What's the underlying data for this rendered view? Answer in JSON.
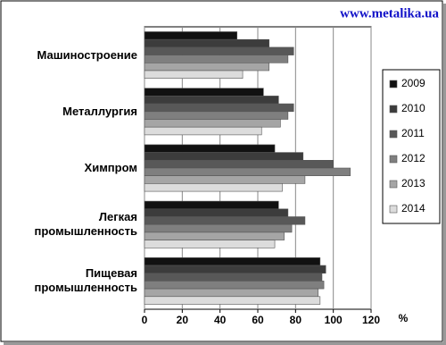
{
  "chart_data": {
    "type": "bar",
    "orientation": "horizontal",
    "watermark": "www.metalika.ua",
    "x_unit": "%",
    "categories": [
      "Машиностроение",
      "Металлургия",
      "Химпром",
      "Легкая промышленность",
      "Пищевая промышленность"
    ],
    "series": [
      {
        "name": "2009",
        "color": "#111111",
        "values": [
          49,
          63,
          69,
          71,
          93
        ]
      },
      {
        "name": "2010",
        "color": "#3c3c3c",
        "values": [
          66,
          71,
          84,
          76,
          96
        ]
      },
      {
        "name": "2011",
        "color": "#585858",
        "values": [
          79,
          79,
          100,
          85,
          94
        ]
      },
      {
        "name": "2012",
        "color": "#7f7f7f",
        "values": [
          76,
          76,
          109,
          78,
          95
        ]
      },
      {
        "name": "2013",
        "color": "#a5a5a5",
        "values": [
          66,
          72,
          85,
          74,
          92
        ]
      },
      {
        "name": "2014",
        "color": "#dcdcdc",
        "values": [
          52,
          62,
          73,
          69,
          93
        ]
      }
    ],
    "xlim": [
      0,
      120
    ],
    "xticks": [
      0,
      20,
      40,
      60,
      80,
      100,
      120
    ],
    "grid": true,
    "legend": "right"
  }
}
